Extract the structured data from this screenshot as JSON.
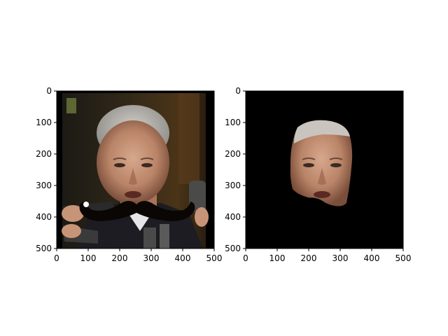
{
  "figure": {
    "background": "#ffffff",
    "axes_color": "#000000"
  },
  "chart_data": [
    {
      "type": "image",
      "content": "photo of a man's face with a black cartoon mustache overlay, surrounded by microphones",
      "xlim": [
        0,
        500
      ],
      "ylim": [
        500,
        0
      ],
      "xticks": [
        0,
        100,
        200,
        300,
        400,
        500
      ],
      "yticks": [
        0,
        100,
        200,
        300,
        400,
        500
      ],
      "grid": false
    },
    {
      "type": "image",
      "content": "segmented face region only, black background, mustache region cut out",
      "xlim": [
        0,
        500
      ],
      "ylim": [
        500,
        0
      ],
      "xticks": [
        0,
        100,
        200,
        300,
        400,
        500
      ],
      "yticks": [
        0,
        100,
        200,
        300,
        400,
        500
      ],
      "grid": false
    }
  ]
}
